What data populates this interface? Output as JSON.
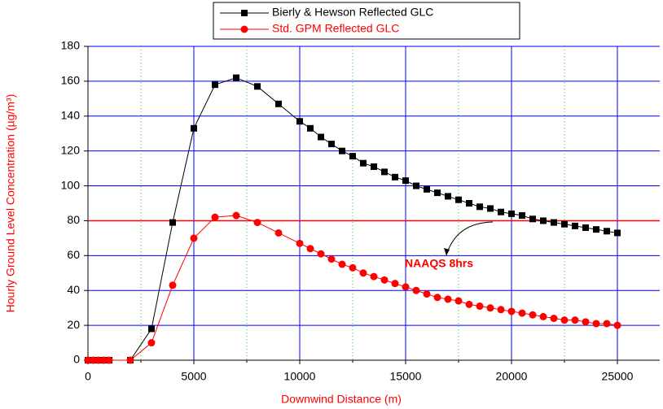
{
  "chart_data": {
    "type": "line",
    "xlabel": "Downwind Distance (m)",
    "ylabel": "Hourly Ground Level Concentration (µg/m³)",
    "x": [
      0,
      250,
      500,
      750,
      1000,
      2000,
      3000,
      4000,
      5000,
      6000,
      7000,
      8000,
      9000,
      10000,
      10500,
      11000,
      11500,
      12000,
      12500,
      13000,
      13500,
      14000,
      14500,
      15000,
      15500,
      16000,
      16500,
      17000,
      17500,
      18000,
      18500,
      19000,
      19500,
      20000,
      20500,
      21000,
      21500,
      22000,
      22500,
      23000,
      23500,
      24000,
      24500,
      25000
    ],
    "series": [
      {
        "name": "Bierly & Hewson Reflected GLC",
        "color": "#000000",
        "marker": "square",
        "values": [
          0,
          0,
          0,
          0,
          0,
          0,
          18,
          79,
          133,
          158,
          162,
          157,
          147,
          137,
          133,
          128,
          124,
          120,
          117,
          113,
          111,
          108,
          105,
          103,
          100,
          98,
          96,
          94,
          92,
          90,
          88,
          87,
          85,
          84,
          83,
          81,
          80,
          79,
          78,
          77,
          76,
          75,
          74,
          73
        ]
      },
      {
        "name": "Std. GPM Reflected GLC",
        "color": "#ff0000",
        "marker": "circle",
        "values": [
          0,
          0,
          0,
          0,
          0,
          0,
          10,
          43,
          70,
          82,
          83,
          79,
          73,
          67,
          64,
          61,
          58,
          55,
          53,
          50,
          48,
          46,
          44,
          42,
          40,
          38,
          36,
          35,
          34,
          32,
          31,
          30,
          29,
          28,
          27,
          26,
          25,
          24,
          23,
          23,
          22,
          21,
          21,
          20
        ]
      }
    ],
    "reference_line": {
      "value": 80,
      "label": "NAAQS 8hrs",
      "color": "#ff0000"
    },
    "xlim": [
      0,
      27000
    ],
    "xticks": [
      0,
      5000,
      10000,
      15000,
      20000,
      25000
    ],
    "xminorticks": [
      2500,
      7500,
      12500,
      17500,
      22500
    ],
    "ylim": [
      0,
      180
    ],
    "yticks": [
      0,
      20,
      40,
      60,
      80,
      100,
      120,
      140,
      160,
      180
    ],
    "grid": true,
    "grid_color": "#0000ff",
    "minor_grid_color": "#33cc33",
    "label_color": "#ff0000",
    "legend": "top"
  }
}
